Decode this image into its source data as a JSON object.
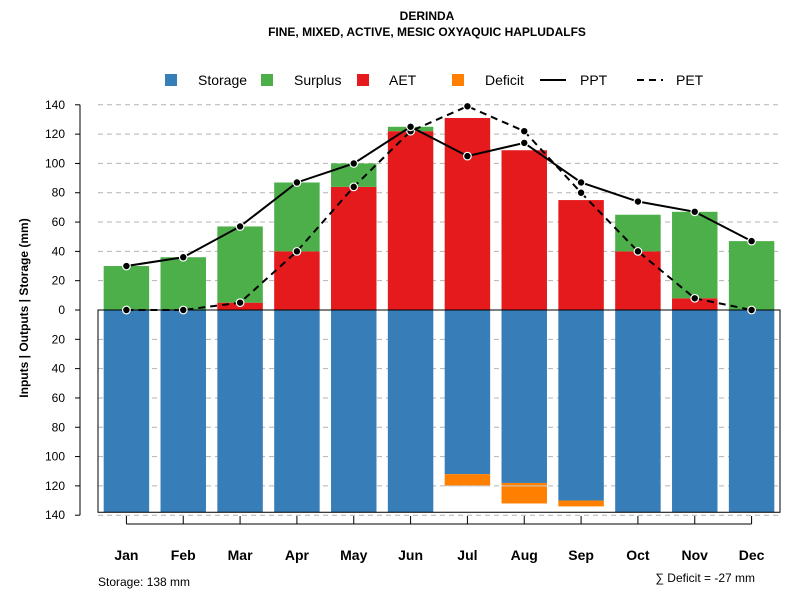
{
  "chart_data": {
    "type": "bar",
    "title": "DERINDA",
    "subtitle": "FINE, MIXED, ACTIVE, MESIC OXYAQUIC HAPLUDALFS",
    "ylabel": "Inputs | Outputs | Storage    (mm)",
    "ylim": [
      -140,
      140
    ],
    "yticks": [
      140,
      120,
      100,
      80,
      60,
      40,
      20,
      0,
      -20,
      -40,
      -60,
      -80,
      -100,
      -120,
      -140
    ],
    "ytick_labels": [
      "140",
      "120",
      "100",
      "80",
      "60",
      "40",
      "20",
      "0",
      "20",
      "40",
      "60",
      "80",
      "100",
      "120",
      "140"
    ],
    "categories": [
      "Jan",
      "Feb",
      "Mar",
      "Apr",
      "May",
      "Jun",
      "Jul",
      "Aug",
      "Sep",
      "Oct",
      "Nov",
      "Dec"
    ],
    "legend": [
      {
        "key": "storage",
        "label": "Storage",
        "color": "#377EB8",
        "kind": "square"
      },
      {
        "key": "surplus",
        "label": "Surplus",
        "color": "#4DAF4A",
        "kind": "square"
      },
      {
        "key": "aet",
        "label": "AET",
        "color": "#E41A1C",
        "kind": "square"
      },
      {
        "key": "deficit",
        "label": "Deficit",
        "color": "#FF7F00",
        "kind": "square"
      },
      {
        "key": "ppt",
        "label": "PPT",
        "color": "#000000",
        "kind": "solid-line"
      },
      {
        "key": "pet",
        "label": "PET",
        "color": "#000000",
        "kind": "dashed-line"
      }
    ],
    "series": [
      {
        "name": "AET",
        "values": [
          0,
          0,
          5,
          40,
          84,
          122,
          131,
          109,
          75,
          40,
          8,
          0
        ]
      },
      {
        "name": "Surplus",
        "values": [
          30,
          36,
          52,
          47,
          16,
          3,
          0,
          0,
          0,
          25,
          59,
          47
        ]
      },
      {
        "name": "Storage",
        "values": [
          138,
          138,
          138,
          138,
          138,
          138,
          112,
          118,
          130,
          138,
          138,
          138
        ]
      },
      {
        "name": "Deficit",
        "values": [
          0,
          0,
          0,
          0,
          0,
          0,
          8,
          14,
          4,
          0,
          0,
          0
        ]
      },
      {
        "name": "PPT",
        "values": [
          30,
          36,
          57,
          87,
          100,
          125,
          105,
          114,
          87,
          74,
          67,
          47
        ]
      },
      {
        "name": "PET",
        "values": [
          0,
          0,
          5,
          40,
          84,
          122,
          139,
          122,
          80,
          40,
          8,
          0
        ]
      }
    ],
    "storage_capacity": 138,
    "gap_bottom": 120
  },
  "footer": {
    "storage_note": "Storage: 138 mm",
    "deficit_note": "∑ Deficit = -27 mm"
  }
}
